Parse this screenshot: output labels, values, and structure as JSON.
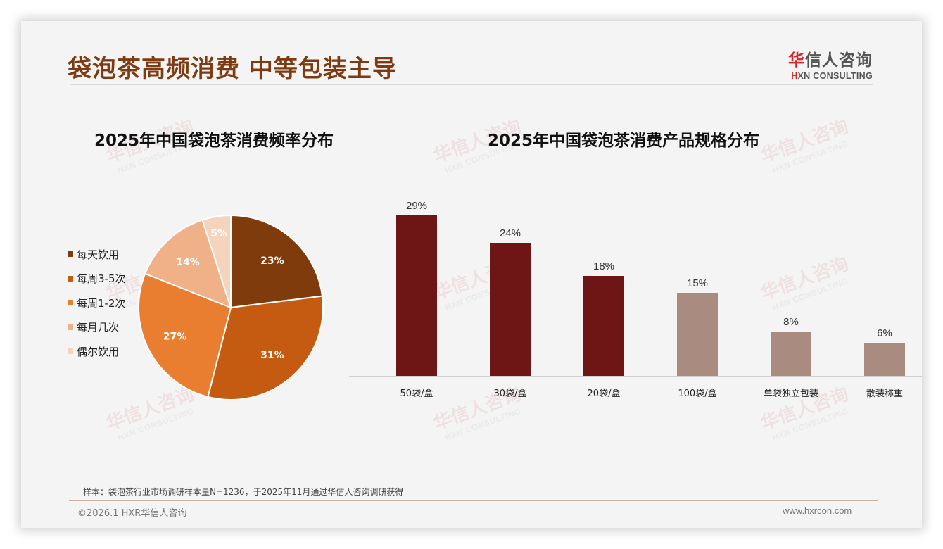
{
  "header": {
    "title": "袋泡茶高频消费 中等包装主导",
    "logo_cn_accent": "华",
    "logo_cn_rest": "信人咨询",
    "logo_en_accent": "H",
    "logo_en_rest": "XN CONSULTING"
  },
  "watermark": {
    "cn": "华信人咨询",
    "en": "HXN CONSULTING"
  },
  "colors": {
    "slide_bg": "#f4f4f4",
    "title": "#7e3a10",
    "bar_primary": "#6e1616",
    "bar_secondary": "#a98b80",
    "pie": [
      "#7f3b0c",
      "#c55a11",
      "#e97d30",
      "#f0b088",
      "#f6d3bd"
    ]
  },
  "chart_data": [
    {
      "type": "pie",
      "title": "2025年中国袋泡茶消费频率分布",
      "categories": [
        "每天饮用",
        "每周3-5次",
        "每周1-2次",
        "每月几次",
        "偶尔饮用"
      ],
      "values": [
        23,
        31,
        27,
        14,
        5
      ],
      "labels": [
        "23%",
        "31%",
        "27%",
        "14%",
        "5%"
      ],
      "unit": "%",
      "legend_position": "left",
      "start_angle": "12 o'clock, clockwise"
    },
    {
      "type": "bar",
      "title": "2025年中国袋泡茶消费产品规格分布",
      "categories": [
        "50袋/盒",
        "30袋/盒",
        "20袋/盒",
        "100袋/盒",
        "单袋独立包装",
        "散装称重"
      ],
      "values": [
        29,
        24,
        18,
        15,
        8,
        6
      ],
      "labels": [
        "29%",
        "24%",
        "18%",
        "15%",
        "8%",
        "6%"
      ],
      "highlight": [
        true,
        true,
        true,
        false,
        false,
        false
      ],
      "xlabel": "",
      "ylabel": "",
      "ylim": [
        0,
        32
      ],
      "grid": false
    }
  ],
  "footer": {
    "note": "样本：袋泡茶行业市场调研样本量N=1236，于2025年11月通过华信人咨询调研获得",
    "copyright": "©2026.1 HXR华信人咨询",
    "website": "www.hxrcon.com"
  }
}
